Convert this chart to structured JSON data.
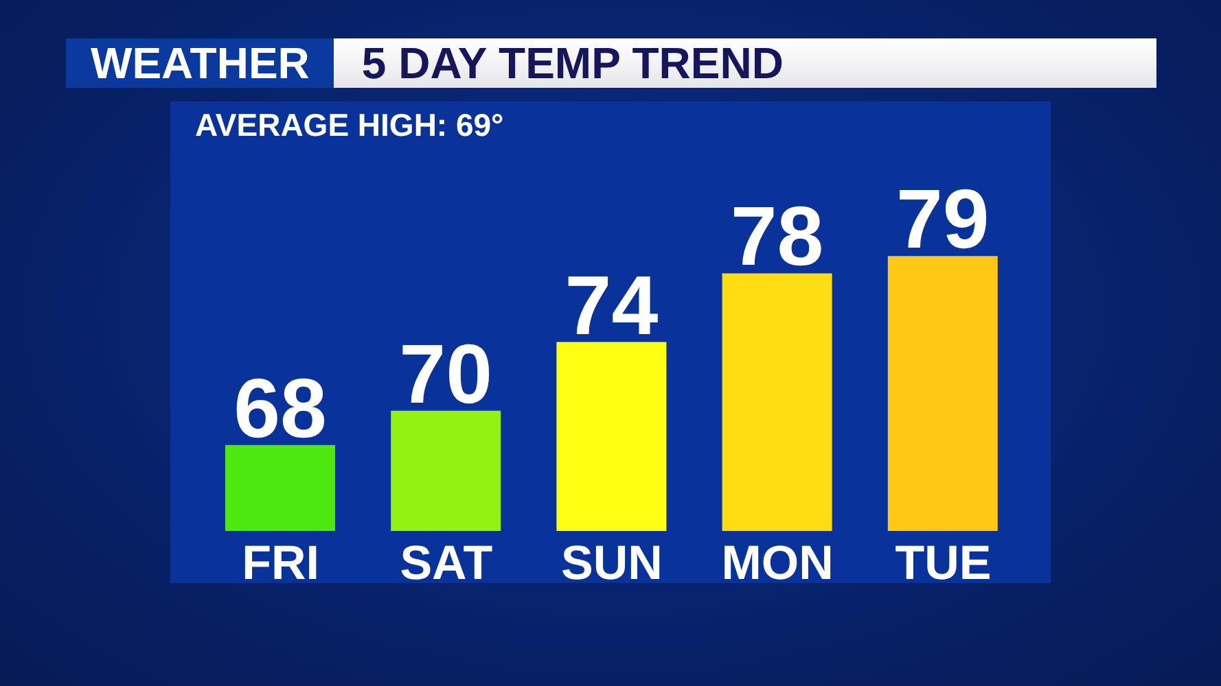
{
  "chart_data": {
    "type": "bar",
    "title": "WEATHER",
    "subtitle": "5 DAY TEMP TREND",
    "annotations": [
      "AVERAGE HIGH: 69°"
    ],
    "categories": [
      "FRI",
      "SAT",
      "SUN",
      "MON",
      "TUE"
    ],
    "values": [
      68,
      70,
      74,
      78,
      79
    ],
    "colors": [
      "#4de80f",
      "#94f213",
      "#ffff14",
      "#ffdd12",
      "#ffc814"
    ],
    "ylim": [
      63,
      88
    ],
    "tick_labels": "x",
    "data_labels": true
  }
}
